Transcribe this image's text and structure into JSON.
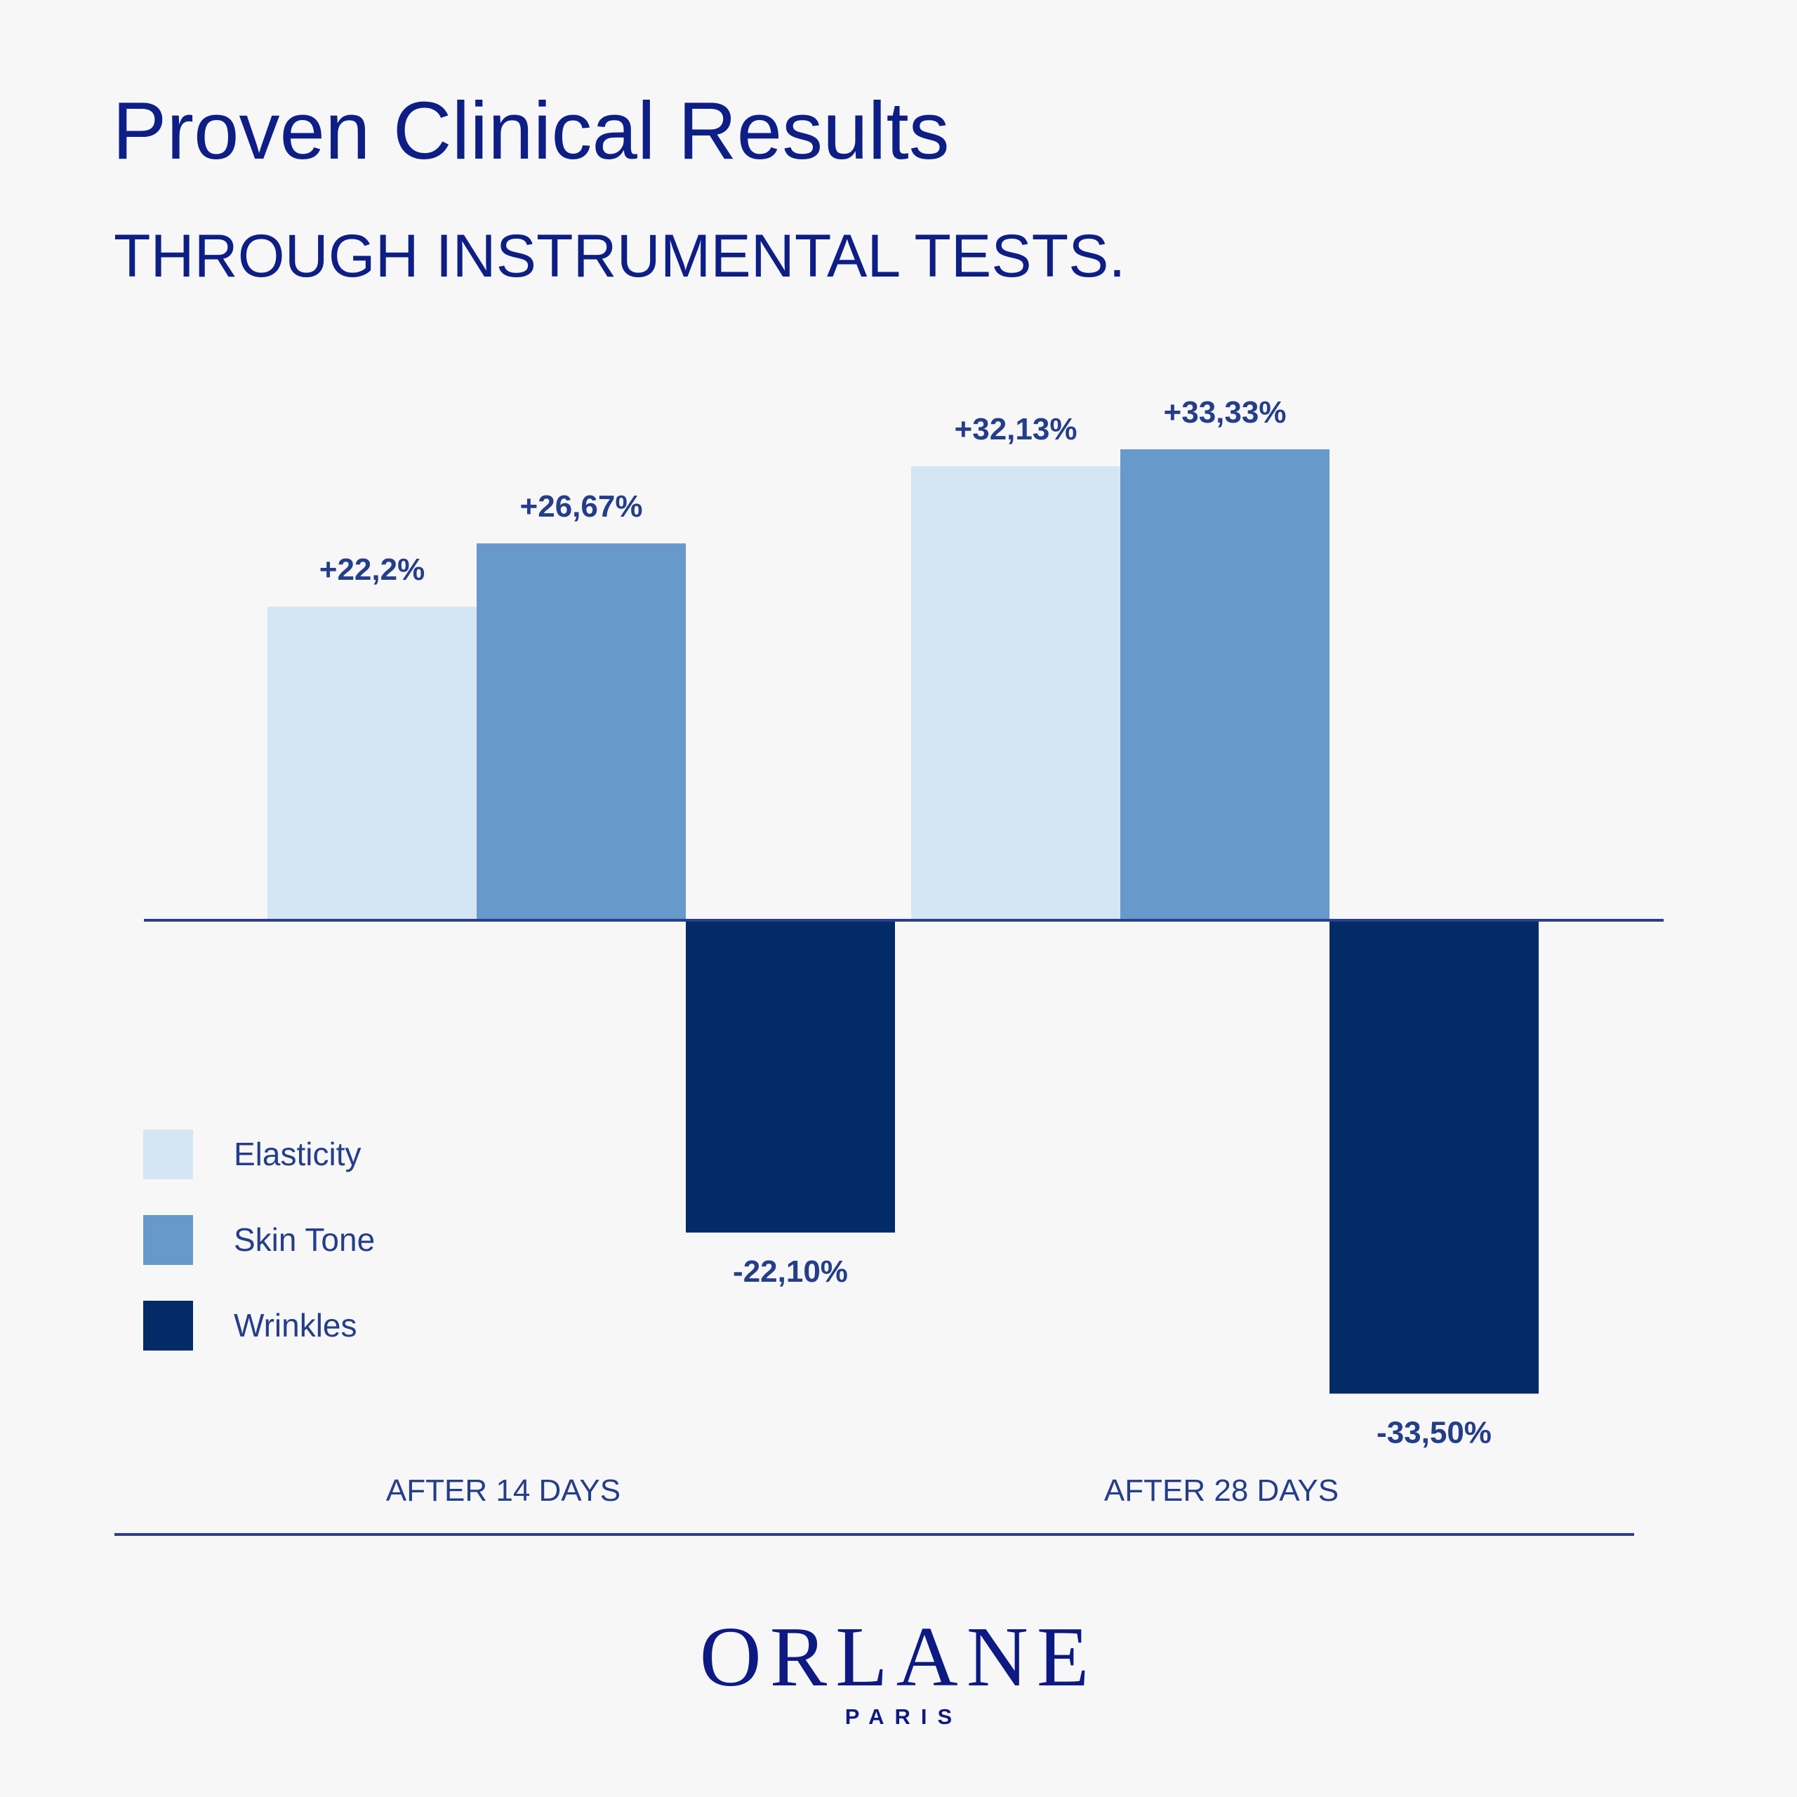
{
  "header": {
    "title": "Proven Clinical Results",
    "subtitle": "THROUGH INSTRUMENTAL TESTS."
  },
  "chart_data": {
    "type": "bar",
    "categories": [
      "AFTER 14 DAYS",
      "AFTER 28 DAYS"
    ],
    "series": [
      {
        "name": "Elasticity",
        "values": [
          22.2,
          32.13
        ],
        "labels": [
          "+22,2%",
          "+32,13%"
        ],
        "color": "#d4e6f4"
      },
      {
        "name": "Skin Tone",
        "values": [
          26.67,
          33.33
        ],
        "labels": [
          "+26,67%",
          "+33,33%"
        ],
        "color": "#6799cb"
      },
      {
        "name": "Wrinkles",
        "values": [
          -22.1,
          -33.5
        ],
        "labels": [
          "-22,10%",
          "-33,50%"
        ],
        "color": "#032b67"
      }
    ],
    "ylim": [
      -33.5,
      33.33
    ],
    "grid": false,
    "legend_position": "bottom-left",
    "label_color": "#243e8a",
    "axis_color": "#2a3f8f"
  },
  "brand": {
    "name": "ORLANE",
    "sub": "PARIS"
  }
}
